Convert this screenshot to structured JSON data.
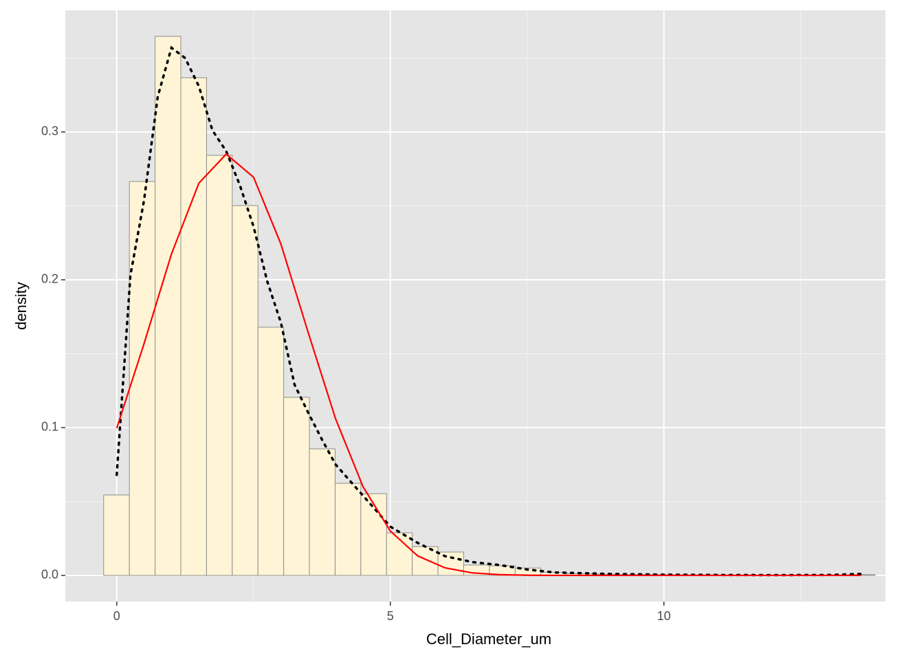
{
  "chart_data": {
    "type": "histogram",
    "xlabel": "Cell_Diameter_um",
    "ylabel": "density",
    "bins": [
      -0.239,
      0.231,
      0.701,
      1.171,
      1.641,
      2.111,
      2.581,
      3.051,
      3.521,
      3.991,
      4.461,
      4.931,
      5.401,
      5.871,
      6.341,
      6.811,
      7.281,
      7.751,
      8.221,
      8.691,
      9.161,
      9.631,
      10.101,
      10.571,
      11.041,
      11.511,
      11.981,
      12.451,
      12.921,
      13.391,
      13.861
    ],
    "values": [
      0.0544,
      0.2665,
      0.3647,
      0.3367,
      0.2842,
      0.2502,
      0.1679,
      0.1205,
      0.0856,
      0.0623,
      0.0553,
      0.0288,
      0.0195,
      0.0158,
      0.007,
      0.0065,
      0.005,
      0.002,
      0.0012,
      0.0008,
      0.0005,
      0.0005,
      0.0003,
      0.0003,
      0.0002,
      0.0002,
      0.0002,
      0.0002,
      0.0002,
      0.0005
    ],
    "fill": "#fff5d6",
    "edge_color": "#8c8c8c",
    "overlays": [
      {
        "x": [
          0,
          0.25,
          0.5,
          0.75,
          1,
          1.25,
          1.5,
          1.75,
          2,
          2.25,
          2.5,
          2.75,
          3,
          3.25,
          3.5,
          3.75,
          4,
          4.5,
          5,
          5.5,
          6,
          6.5,
          7,
          7.5,
          8,
          9,
          10,
          11,
          12,
          13,
          13.6
        ],
        "values": [
          0.068,
          0.203,
          0.254,
          0.324,
          0.357,
          0.35,
          0.331,
          0.301,
          0.287,
          0.264,
          0.236,
          0.199,
          0.171,
          0.129,
          0.11,
          0.092,
          0.075,
          0.054,
          0.033,
          0.022,
          0.013,
          0.009,
          0.007,
          0.004,
          0.002,
          0.001,
          0.0005,
          0.0003,
          0.0002,
          0.0003,
          0.001
        ],
        "color": "#000000",
        "style": "dotted"
      },
      {
        "x": [
          0,
          0.5,
          1,
          1.5,
          2,
          2.5,
          3,
          3.5,
          4,
          4.5,
          5,
          5.5,
          6,
          6.5,
          7,
          7.5,
          8,
          9,
          10,
          11,
          12,
          13,
          13.6
        ],
        "values": [
          0.0996,
          0.1569,
          0.2174,
          0.2653,
          0.285,
          0.2694,
          0.2242,
          0.1642,
          0.1059,
          0.0601,
          0.03,
          0.0132,
          0.0051,
          0.0017,
          0.0005,
          0.0001,
          0,
          0,
          0,
          0,
          0,
          0,
          0
        ],
        "color": "#ff0000",
        "style": "solid"
      }
    ],
    "xlim": [
      -0.94,
      14.05
    ],
    "ylim": [
      -0.0177,
      0.3823
    ],
    "xticks": [
      0,
      5,
      10
    ],
    "yticks": [
      {
        "value": 0,
        "label": "0.0"
      },
      0.1,
      0.2,
      0.3
    ],
    "xminor": [
      2.5,
      7.5,
      12.5
    ],
    "yminor": [
      0.05,
      0.15,
      0.25,
      0.35
    ],
    "grid": true
  }
}
